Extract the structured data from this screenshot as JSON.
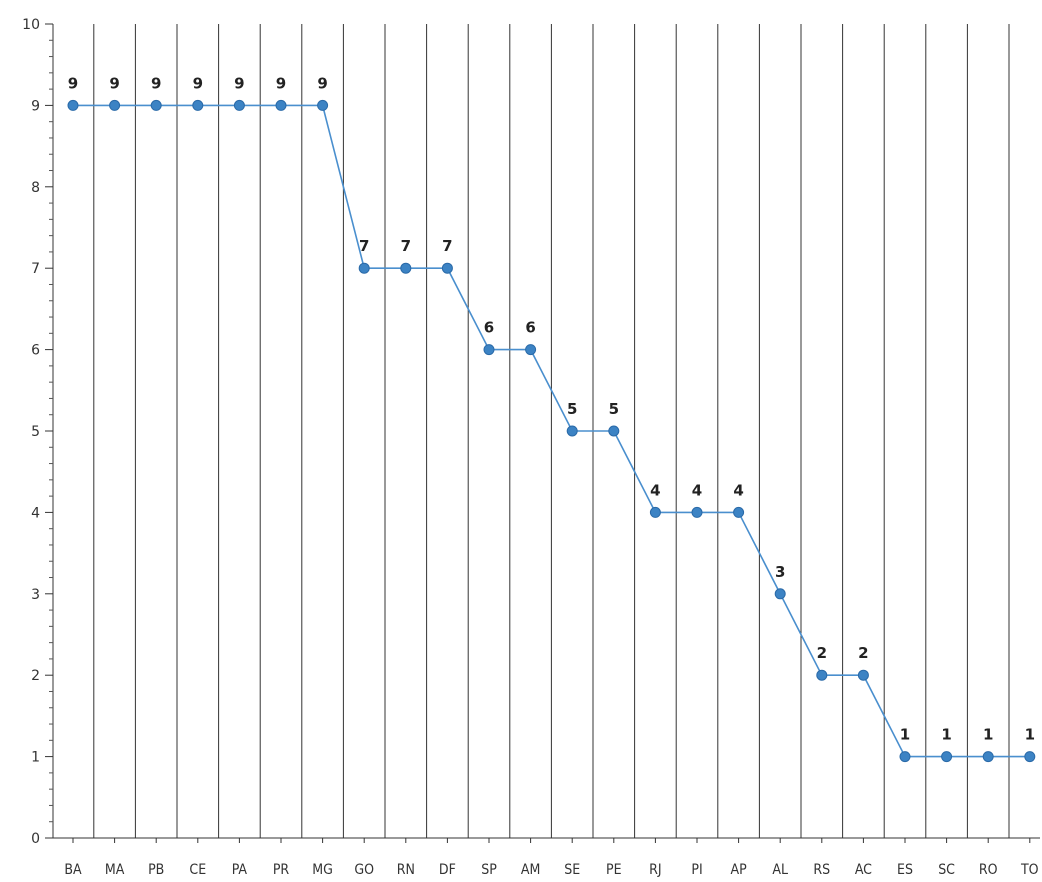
{
  "chart_data": {
    "type": "line",
    "title": "",
    "xlabel": "",
    "ylabel": "",
    "categories": [
      "BA",
      "MA",
      "PB",
      "CE",
      "PA",
      "PR",
      "MG",
      "GO",
      "RN",
      "DF",
      "SP",
      "AM",
      "SE",
      "PE",
      "RJ",
      "PI",
      "AP",
      "AL",
      "RS",
      "AC",
      "ES",
      "SC",
      "RO",
      "TO"
    ],
    "values": [
      9,
      9,
      9,
      9,
      9,
      9,
      9,
      7,
      7,
      7,
      6,
      6,
      5,
      5,
      4,
      4,
      4,
      3,
      2,
      2,
      1,
      1,
      1,
      1
    ],
    "ylim": [
      0,
      10
    ],
    "yticks": [
      "0",
      "1",
      "2",
      "3",
      "4",
      "5",
      "6",
      "7",
      "8",
      "9",
      "10"
    ],
    "grid": "vertical lines between categories",
    "legend": "none",
    "data_labels": true,
    "line_color": "#4a8fce",
    "marker_color": "#3c83c4",
    "grid_color": "#333333"
  }
}
